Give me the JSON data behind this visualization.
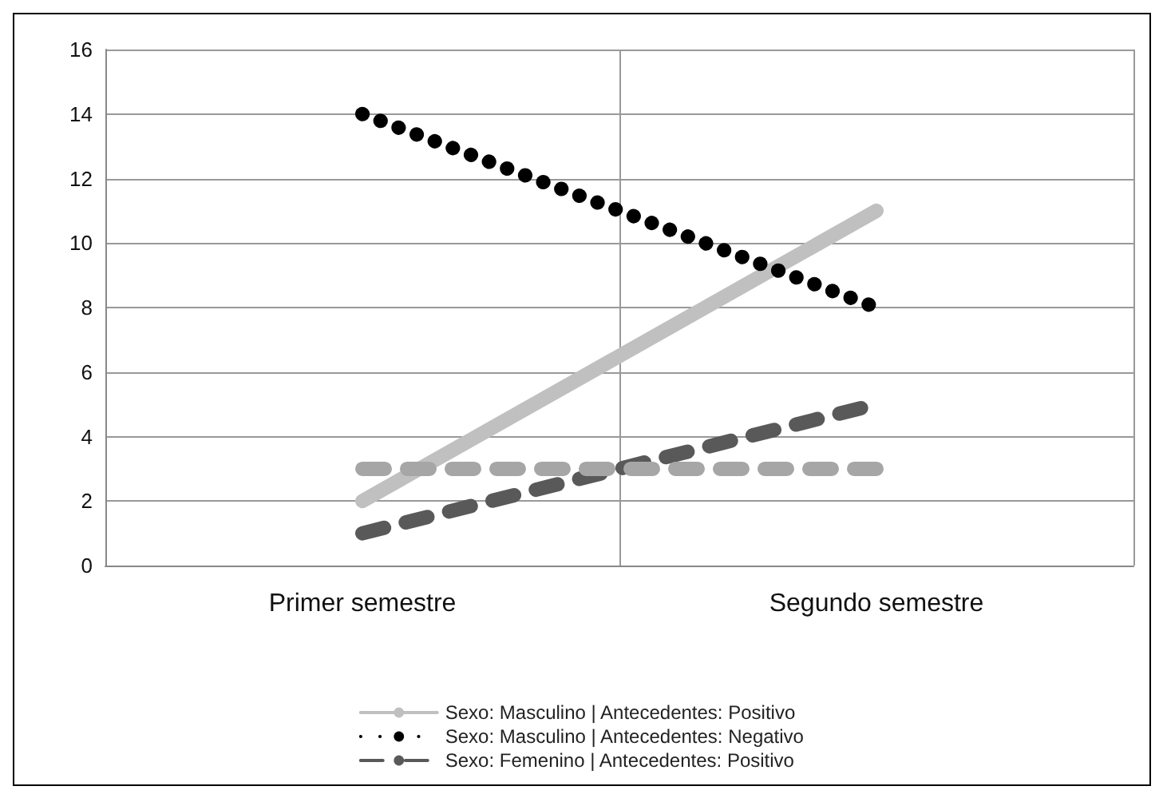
{
  "chart_data": {
    "type": "line",
    "categories": [
      "Primer semestre",
      "Segundo semestre"
    ],
    "series": [
      {
        "name": "Sexo: Masculino | Antecedentes: Positivo",
        "color": "#c0c0c0",
        "line_style": "solid",
        "values": [
          2,
          11
        ]
      },
      {
        "name": "Sexo: Masculino | Antecedentes: Negativo",
        "color": "#000000",
        "line_style": "dotted",
        "values": [
          14,
          8
        ]
      },
      {
        "name": "Sexo: Femenino | Antecedentes: Positivo",
        "color": "#595959",
        "line_style": "dashed",
        "values": [
          1,
          5
        ]
      },
      {
        "color": "#a6a6a6",
        "line_style": "dashed",
        "values": [
          3,
          3
        ]
      }
    ],
    "ylim": [
      0,
      16
    ],
    "yticks": [
      0,
      2,
      4,
      6,
      8,
      10,
      12,
      14,
      16
    ],
    "grid": true,
    "legend": "bottom",
    "marker": "none"
  }
}
